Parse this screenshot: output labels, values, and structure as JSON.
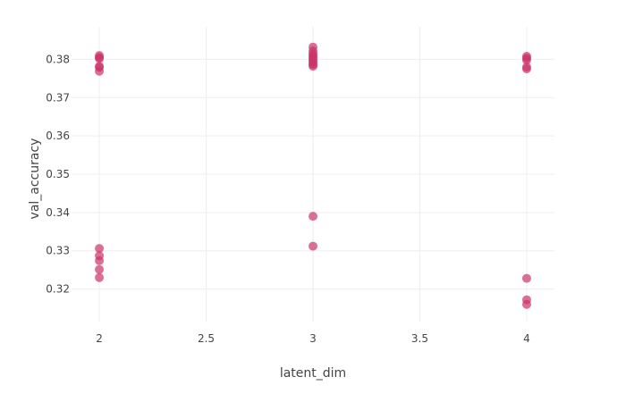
{
  "chart_data": {
    "type": "scatter",
    "title": "",
    "xlabel": "latent_dim",
    "ylabel": "val_accuracy",
    "xlim": [
      1.87,
      4.13
    ],
    "ylim": [
      0.3115,
      0.3885
    ],
    "x_ticks": [
      {
        "value": 2,
        "label": "2"
      },
      {
        "value": 2.5,
        "label": "2.5"
      },
      {
        "value": 3,
        "label": "3"
      },
      {
        "value": 3.5,
        "label": "3.5"
      },
      {
        "value": 4,
        "label": "4"
      }
    ],
    "y_ticks": [
      {
        "value": 0.32,
        "label": "0.32"
      },
      {
        "value": 0.33,
        "label": "0.33"
      },
      {
        "value": 0.34,
        "label": "0.34"
      },
      {
        "value": 0.35,
        "label": "0.35"
      },
      {
        "value": 0.36,
        "label": "0.36"
      },
      {
        "value": 0.37,
        "label": "0.37"
      },
      {
        "value": 0.38,
        "label": "0.38"
      }
    ],
    "grid": true,
    "marker_color": "#cc3366",
    "series": [
      {
        "points": [
          {
            "x": 2,
            "y": 0.381
          },
          {
            "x": 2,
            "y": 0.3805
          },
          {
            "x": 2,
            "y": 0.3802
          },
          {
            "x": 2,
            "y": 0.3782
          },
          {
            "x": 2,
            "y": 0.3779
          },
          {
            "x": 2,
            "y": 0.3769
          },
          {
            "x": 2,
            "y": 0.3306
          },
          {
            "x": 2,
            "y": 0.3287
          },
          {
            "x": 2,
            "y": 0.3274
          },
          {
            "x": 2,
            "y": 0.3251
          },
          {
            "x": 2,
            "y": 0.323
          },
          {
            "x": 3,
            "y": 0.3832
          },
          {
            "x": 3,
            "y": 0.3822
          },
          {
            "x": 3,
            "y": 0.3815
          },
          {
            "x": 3,
            "y": 0.381
          },
          {
            "x": 3,
            "y": 0.3805
          },
          {
            "x": 3,
            "y": 0.38
          },
          {
            "x": 3,
            "y": 0.3795
          },
          {
            "x": 3,
            "y": 0.379
          },
          {
            "x": 3,
            "y": 0.3786
          },
          {
            "x": 3,
            "y": 0.3782
          },
          {
            "x": 3,
            "y": 0.339
          },
          {
            "x": 3,
            "y": 0.3312
          },
          {
            "x": 4,
            "y": 0.3808
          },
          {
            "x": 4,
            "y": 0.3803
          },
          {
            "x": 4,
            "y": 0.3798
          },
          {
            "x": 4,
            "y": 0.378
          },
          {
            "x": 4,
            "y": 0.3775
          },
          {
            "x": 4,
            "y": 0.3228
          },
          {
            "x": 4,
            "y": 0.3172
          },
          {
            "x": 4,
            "y": 0.316
          }
        ]
      }
    ]
  }
}
